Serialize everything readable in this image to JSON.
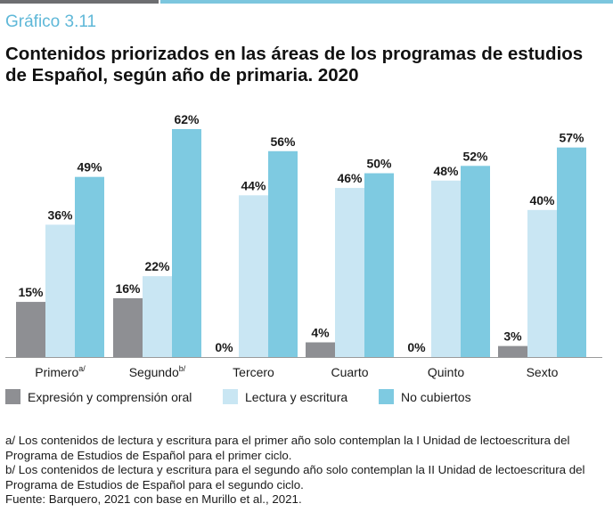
{
  "header": {
    "figure_label": "Gráfico 3.11",
    "title": "Contenidos priorizados en las áreas de los programas de estudios de Español, según año de primaria. 2020"
  },
  "colors": {
    "accent_dark": "#6d6e71",
    "accent_light": "#7cc6de",
    "figure_label": "#5fb8d8"
  },
  "chart_data": {
    "type": "bar",
    "categories": [
      "Primero",
      "Segundo",
      "Tercero",
      "Cuarto",
      "Quinto",
      "Sexto"
    ],
    "category_superscripts": [
      "a/",
      "b/",
      "",
      "",
      "",
      ""
    ],
    "series": [
      {
        "name": "Expresión y comprensión oral",
        "color": "#8e8f93",
        "values": [
          15,
          16,
          0,
          4,
          0,
          3
        ],
        "labels": [
          "15%",
          "16%",
          "0%",
          "4%",
          "0%",
          "3%"
        ]
      },
      {
        "name": "Lectura y escritura",
        "color": "#c9e6f3",
        "values": [
          36,
          22,
          44,
          46,
          48,
          40
        ],
        "labels": [
          "36%",
          "22%",
          "44%",
          "46%",
          "48%",
          "40%"
        ]
      },
      {
        "name": "No cubiertos",
        "color": "#7ecae1",
        "values": [
          49,
          62,
          56,
          50,
          52,
          57
        ],
        "labels": [
          "49%",
          "62%",
          "56%",
          "50%",
          "52%",
          "57%"
        ]
      }
    ],
    "ylim": [
      0,
      62
    ],
    "grid": false,
    "legend_position": "bottom"
  },
  "notes": [
    "a/ Los contenidos de lectura y escritura para el primer año solo contemplan la I Unidad de lectoescritura del Programa de Estudios de Español para el primer ciclo.",
    "b/ Los contenidos de lectura y escritura para el segundo año solo contemplan la II Unidad de lectoescritu­ra del Programa de Estudios de Español para el segundo ciclo.",
    "Fuente: Barquero, 2021 con base en Murillo et al., 2021."
  ]
}
